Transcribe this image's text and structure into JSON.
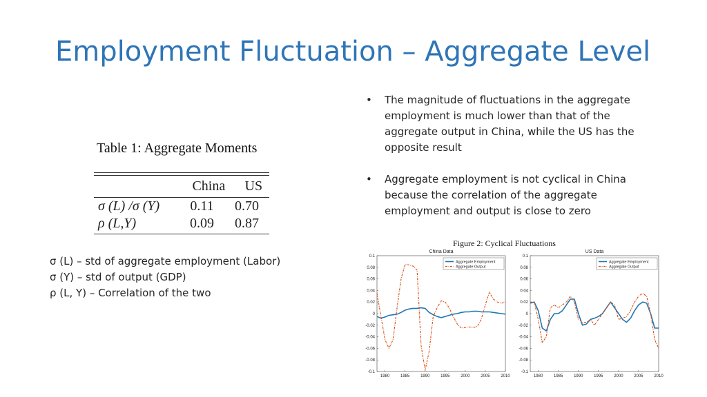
{
  "slide": {
    "title": "Employment Fluctuation – Aggregate Level"
  },
  "bullets": [
    "The magnitude of fluctuations in the aggregate employment is much lower than that of the aggregate output in China, while the US has the opposite result",
    "Aggregate employment is not cyclical in China because the correlation of the aggregate employment and output is close to zero"
  ],
  "bullet_marker": "•",
  "table": {
    "title": "Table 1:  Aggregate Moments",
    "columns": [
      "",
      "China",
      "US"
    ],
    "rows": [
      {
        "label": "σ (L) /σ (Y)",
        "china": "0.11",
        "us": "0.70"
      },
      {
        "label": "ρ (L,Y)",
        "china": "0.09",
        "us": "0.87"
      }
    ]
  },
  "notes": [
    "σ (L) – std of aggregate employment (Labor)",
    "σ (Y) – std of output (GDP)",
    "ρ (L, Y) – Correlation of the two"
  ],
  "figure": {
    "title": "Figure 2: Cyclical Fluctuations"
  },
  "colors": {
    "title": "#2e75b6",
    "employment": "#1f77b4",
    "output": "#d95319"
  },
  "chart_data": [
    {
      "type": "line",
      "title": "China Data",
      "ylim": [
        -0.1,
        0.1
      ],
      "yticks": [
        "0.1",
        "0.08",
        "0.06",
        "0.04",
        "0.02",
        "0",
        "-0.02",
        "-0.04",
        "-0.06",
        "-0.08",
        "-0.1"
      ],
      "xlim": [
        1978,
        2010
      ],
      "xticks": [
        "1980",
        "1985",
        "1990",
        "1995",
        "2000",
        "2005",
        "2010"
      ],
      "legend_position": "top-right",
      "series": [
        {
          "name": "Aggregate Employment",
          "x": [
            1978,
            1979,
            1980,
            1981,
            1982,
            1983,
            1984,
            1985,
            1986,
            1987,
            1988,
            1989,
            1990,
            1991,
            1992,
            1993,
            1994,
            1995,
            1996,
            1997,
            1998,
            1999,
            2000,
            2001,
            2002,
            2003,
            2004,
            2005,
            2006,
            2007,
            2008,
            2009,
            2010
          ],
          "y": [
            -0.005,
            -0.008,
            -0.006,
            -0.003,
            -0.002,
            -0.001,
            0.002,
            0.006,
            0.008,
            0.009,
            0.009,
            0.01,
            0.009,
            0.002,
            -0.002,
            -0.005,
            -0.007,
            -0.005,
            -0.003,
            -0.001,
            0.0,
            0.002,
            0.003,
            0.003,
            0.004,
            0.004,
            0.003,
            0.003,
            0.003,
            0.002,
            0.001,
            0.0,
            -0.001
          ]
        },
        {
          "name": "Aggregate Output",
          "x": [
            1978,
            1979,
            1980,
            1981,
            1982,
            1983,
            1984,
            1985,
            1986,
            1987,
            1988,
            1989,
            1990,
            1991,
            1992,
            1993,
            1994,
            1995,
            1996,
            1997,
            1998,
            1999,
            2000,
            2001,
            2002,
            2003,
            2004,
            2005,
            2006,
            2007,
            2008,
            2009,
            2010
          ],
          "y": [
            0.035,
            -0.005,
            -0.045,
            -0.06,
            -0.045,
            0.01,
            0.06,
            0.085,
            0.084,
            0.082,
            0.075,
            -0.055,
            -0.098,
            -0.065,
            -0.005,
            0.01,
            0.022,
            0.02,
            0.01,
            -0.005,
            -0.018,
            -0.025,
            -0.024,
            -0.023,
            -0.024,
            -0.022,
            -0.01,
            0.015,
            0.037,
            0.025,
            0.02,
            0.018,
            0.02
          ]
        }
      ]
    },
    {
      "type": "line",
      "title": "US Data",
      "ylim": [
        -0.1,
        0.1
      ],
      "yticks": [
        "0.1",
        "0.08",
        "0.06",
        "0.04",
        "0.02",
        "0",
        "-0.02",
        "-0.04",
        "-0.06",
        "-0.08",
        "-0.1"
      ],
      "xlim": [
        1978,
        2010
      ],
      "xticks": [
        "1980",
        "1985",
        "1990",
        "1995",
        "2000",
        "2005",
        "2010"
      ],
      "legend_position": "top-right",
      "series": [
        {
          "name": "Aggregate Employment",
          "x": [
            1978,
            1979,
            1980,
            1981,
            1982,
            1983,
            1984,
            1985,
            1986,
            1987,
            1988,
            1989,
            1990,
            1991,
            1992,
            1993,
            1994,
            1995,
            1996,
            1997,
            1998,
            1999,
            2000,
            2001,
            2002,
            2003,
            2004,
            2005,
            2006,
            2007,
            2008,
            2009,
            2010
          ],
          "y": [
            0.018,
            0.02,
            0.005,
            -0.025,
            -0.03,
            -0.01,
            0.0,
            0.0,
            0.005,
            0.015,
            0.025,
            0.025,
            0.0,
            -0.02,
            -0.018,
            -0.01,
            -0.008,
            -0.005,
            0.0,
            0.01,
            0.02,
            0.01,
            0.0,
            -0.01,
            -0.015,
            -0.008,
            0.005,
            0.015,
            0.02,
            0.018,
            0.0,
            -0.025,
            -0.025
          ]
        },
        {
          "name": "Aggregate Output",
          "x": [
            1978,
            1979,
            1980,
            1981,
            1982,
            1983,
            1984,
            1985,
            1986,
            1987,
            1988,
            1989,
            1990,
            1991,
            1992,
            1993,
            1994,
            1995,
            1996,
            1997,
            1998,
            1999,
            2000,
            2001,
            2002,
            2003,
            2004,
            2005,
            2006,
            2007,
            2008,
            2009,
            2010
          ],
          "y": [
            0.02,
            0.02,
            -0.01,
            -0.05,
            -0.04,
            0.01,
            0.015,
            0.01,
            0.015,
            0.02,
            0.03,
            0.02,
            -0.01,
            -0.015,
            -0.015,
            -0.01,
            -0.02,
            -0.01,
            0.0,
            0.01,
            0.02,
            0.015,
            -0.01,
            -0.008,
            -0.005,
            0.005,
            0.02,
            0.03,
            0.035,
            0.03,
            0.0,
            -0.045,
            -0.06
          ]
        }
      ]
    }
  ]
}
